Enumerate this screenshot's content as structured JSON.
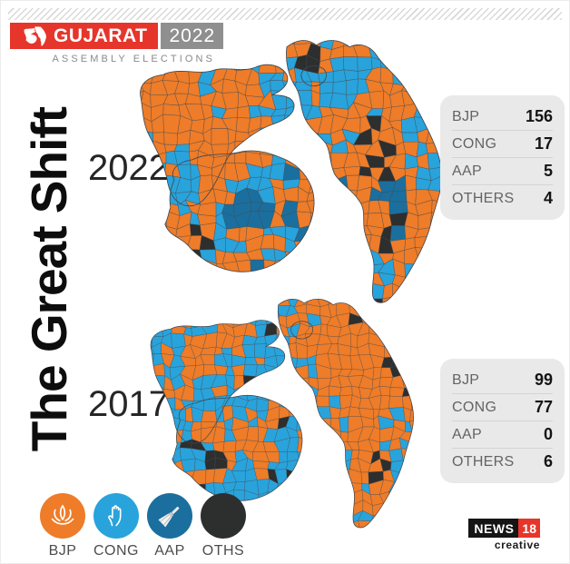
{
  "header": {
    "brand": "GUJARAT",
    "edition_year": "2022",
    "subtitle": "ASSEMBLY ELECTIONS"
  },
  "title": "The Great Shift",
  "colors": {
    "bjp": "#ee7c28",
    "cong": "#29a3db",
    "aap": "#1a6f9e",
    "oth": "#2d2e2e",
    "banner_red": "#e6352b",
    "banner_gray": "#8f8f8f",
    "box_bg": "#e9e9e9"
  },
  "legend": [
    {
      "key": "bjp",
      "label": "BJP",
      "icon": "lotus-icon"
    },
    {
      "key": "cong",
      "label": "CONG",
      "icon": "hand-icon"
    },
    {
      "key": "aap",
      "label": "AAP",
      "icon": "broom-icon"
    },
    {
      "key": "oth",
      "label": "OTHS",
      "icon": "plain-circle"
    }
  ],
  "chart_data": [
    {
      "type": "choropleth-map",
      "region": "Gujarat",
      "year_label": "2022",
      "results": [
        {
          "key": "bjp",
          "party": "BJP",
          "seats": 156
        },
        {
          "key": "cong",
          "party": "CONG",
          "seats": 17
        },
        {
          "key": "aap",
          "party": "AAP",
          "seats": 5
        },
        {
          "key": "oth",
          "party": "OTHERS",
          "seats": 4
        }
      ]
    },
    {
      "type": "choropleth-map",
      "region": "Gujarat",
      "year_label": "2017",
      "results": [
        {
          "key": "bjp",
          "party": "BJP",
          "seats": 99
        },
        {
          "key": "cong",
          "party": "CONG",
          "seats": 77
        },
        {
          "key": "aap",
          "party": "AAP",
          "seats": 0
        },
        {
          "key": "oth",
          "party": "OTHERS",
          "seats": 6
        }
      ]
    }
  ],
  "footer_logo": {
    "line1": "NEWS",
    "line2": "18",
    "line3": "creative"
  }
}
